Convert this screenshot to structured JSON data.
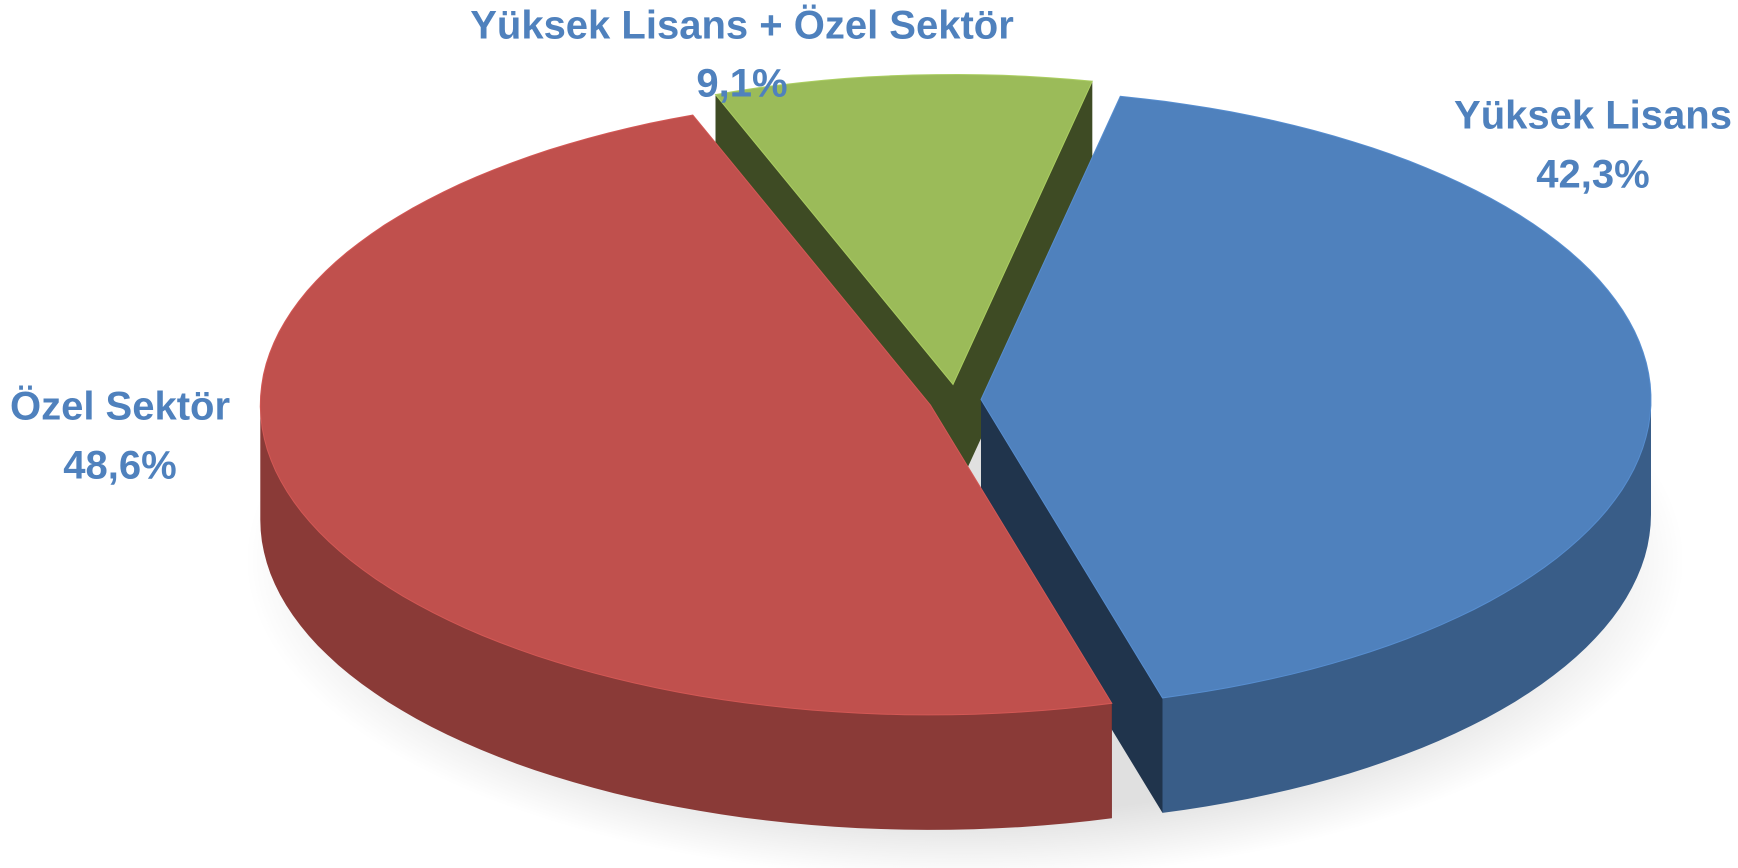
{
  "chart_data": {
    "type": "pie",
    "categories": [
      "Yüksek Lisans",
      "Özel Sektör",
      "Yüksek Lisans + Özel Sektör"
    ],
    "values": [
      42.3,
      48.6,
      9.1
    ],
    "value_labels": [
      "42,3%",
      "48,6%",
      "9,1%"
    ],
    "colors": [
      "#4f81bd",
      "#c0504d",
      "#9bbb59"
    ]
  }
}
